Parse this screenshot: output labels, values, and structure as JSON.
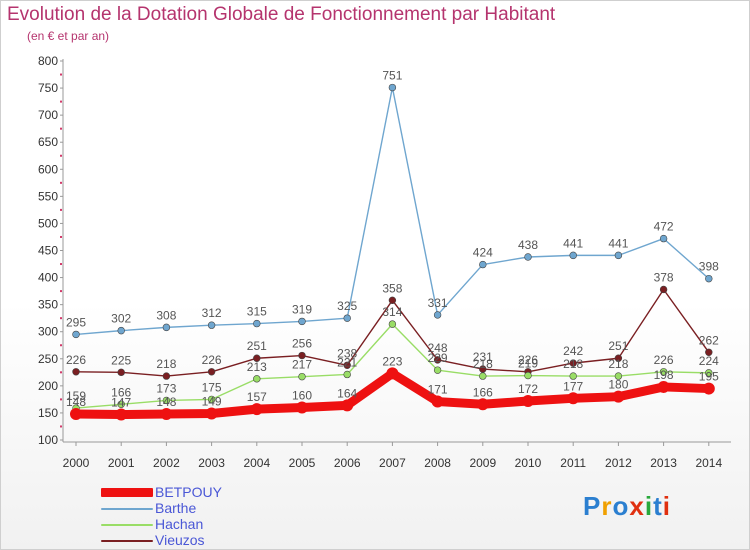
{
  "header": {
    "title": "Evolution de la Dotation Globale de Fonctionnement par Habitant",
    "subtitle": "(en € et par an)"
  },
  "logo": {
    "text": "Proxiti",
    "colors": [
      "#2b7fd0",
      "#f0a000",
      "#2b7fd0",
      "#e03010",
      "#29a83b",
      "#2b7fd0",
      "#e03010"
    ]
  },
  "chart_data": {
    "type": "line",
    "title": "Evolution de la Dotation Globale de Fonctionnement par Habitant",
    "subtitle": "(en € et par an)",
    "xlabel": "",
    "ylabel": "",
    "x": [
      "2000",
      "2001",
      "2002",
      "2003",
      "2004",
      "2005",
      "2006",
      "2007",
      "2008",
      "2009",
      "2010",
      "2011",
      "2012",
      "2013",
      "2014"
    ],
    "ylim": [
      100,
      800
    ],
    "yticks": [
      100,
      150,
      200,
      250,
      300,
      350,
      400,
      450,
      500,
      550,
      600,
      650,
      700,
      750,
      800
    ],
    "grid": false,
    "legend_position": "bottom-left",
    "series": [
      {
        "name": "BETPOUY",
        "color": "#ee1111",
        "values": [
          148,
          147,
          148,
          149,
          157,
          160,
          164,
          223,
          171,
          166,
          172,
          177,
          180,
          198,
          195
        ],
        "labels": [
          "148",
          "147",
          "148",
          "149",
          "157",
          "160",
          "164",
          "223",
          "171",
          "166",
          "172",
          "177",
          "180",
          "198",
          "195"
        ]
      },
      {
        "name": "Barthe",
        "color": "#6fa6cf",
        "values": [
          295,
          302,
          308,
          312,
          315,
          319,
          325,
          751,
          331,
          424,
          438,
          441,
          441,
          472,
          398
        ],
        "labels": [
          "295",
          "302",
          "308",
          "312",
          "315",
          "319",
          "325",
          "751",
          "331",
          "424",
          "438",
          "441",
          "441",
          "472",
          "398"
        ]
      },
      {
        "name": "Hachan",
        "color": "#99dd66",
        "values": [
          159,
          166,
          173,
          175,
          213,
          217,
          221,
          314,
          229,
          218,
          219,
          218,
          218,
          226,
          224
        ],
        "labels": [
          "159",
          "166",
          "173",
          "175",
          "213",
          "217",
          "221",
          "314",
          "229",
          "218",
          "219",
          "218",
          "218",
          "226",
          "224"
        ]
      },
      {
        "name": "Vieuzos",
        "color": "#7a1f22",
        "values": [
          226,
          225,
          218,
          226,
          251,
          256,
          238,
          358,
          248,
          231,
          226,
          242,
          251,
          378,
          262
        ],
        "labels": [
          "226",
          "225",
          "218",
          "226",
          "251",
          "256",
          "238",
          "358",
          "248",
          "231",
          "226",
          "242",
          "251",
          "378",
          "262"
        ]
      }
    ]
  }
}
